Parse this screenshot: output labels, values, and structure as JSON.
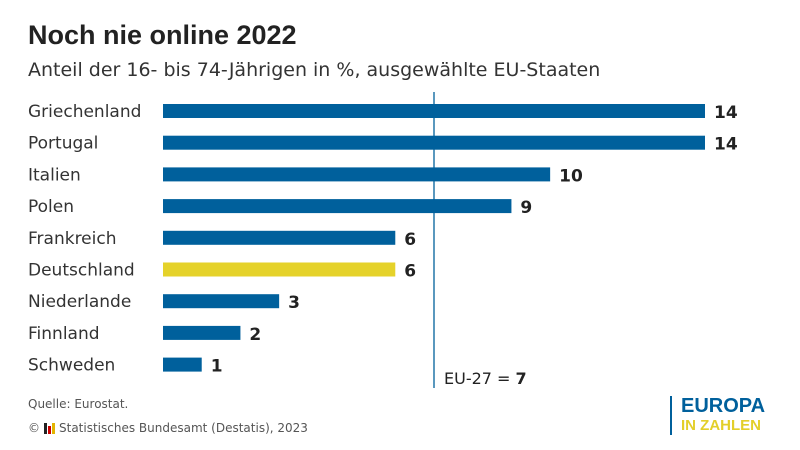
{
  "title": "Noch nie online 2022",
  "subtitle": "Anteil der 16- bis 74-Jährigen in %, ausgewählte EU-Staaten",
  "chart_data": {
    "type": "bar",
    "orientation": "horizontal",
    "title": "Noch nie online 2022",
    "subtitle": "Anteil der 16- bis 74-Jährigen in %, ausgewählte EU-Staaten",
    "categories": [
      "Griechenland",
      "Portugal",
      "Italien",
      "Polen",
      "Frankreich",
      "Deutschland",
      "Niederlande",
      "Finnland",
      "Schweden"
    ],
    "values": [
      14,
      14,
      10,
      9,
      6,
      6,
      3,
      2,
      1
    ],
    "highlight": "Deutschland",
    "xlim": [
      0,
      14
    ],
    "grid": false,
    "reference_line": {
      "label": "EU-27 = ",
      "value": 7,
      "value_label": "7"
    },
    "colors": {
      "bar": "#00609c",
      "highlight": "#e5d22a",
      "reference_line": "#00609c"
    }
  },
  "footer": {
    "source": "Quelle: Eurostat.",
    "copyright_symbol": "©",
    "copyright": "Statistisches Bundesamt (Destatis), 2023"
  },
  "brand": {
    "line1": "EUROPA",
    "line2": "IN ZAHLEN"
  }
}
